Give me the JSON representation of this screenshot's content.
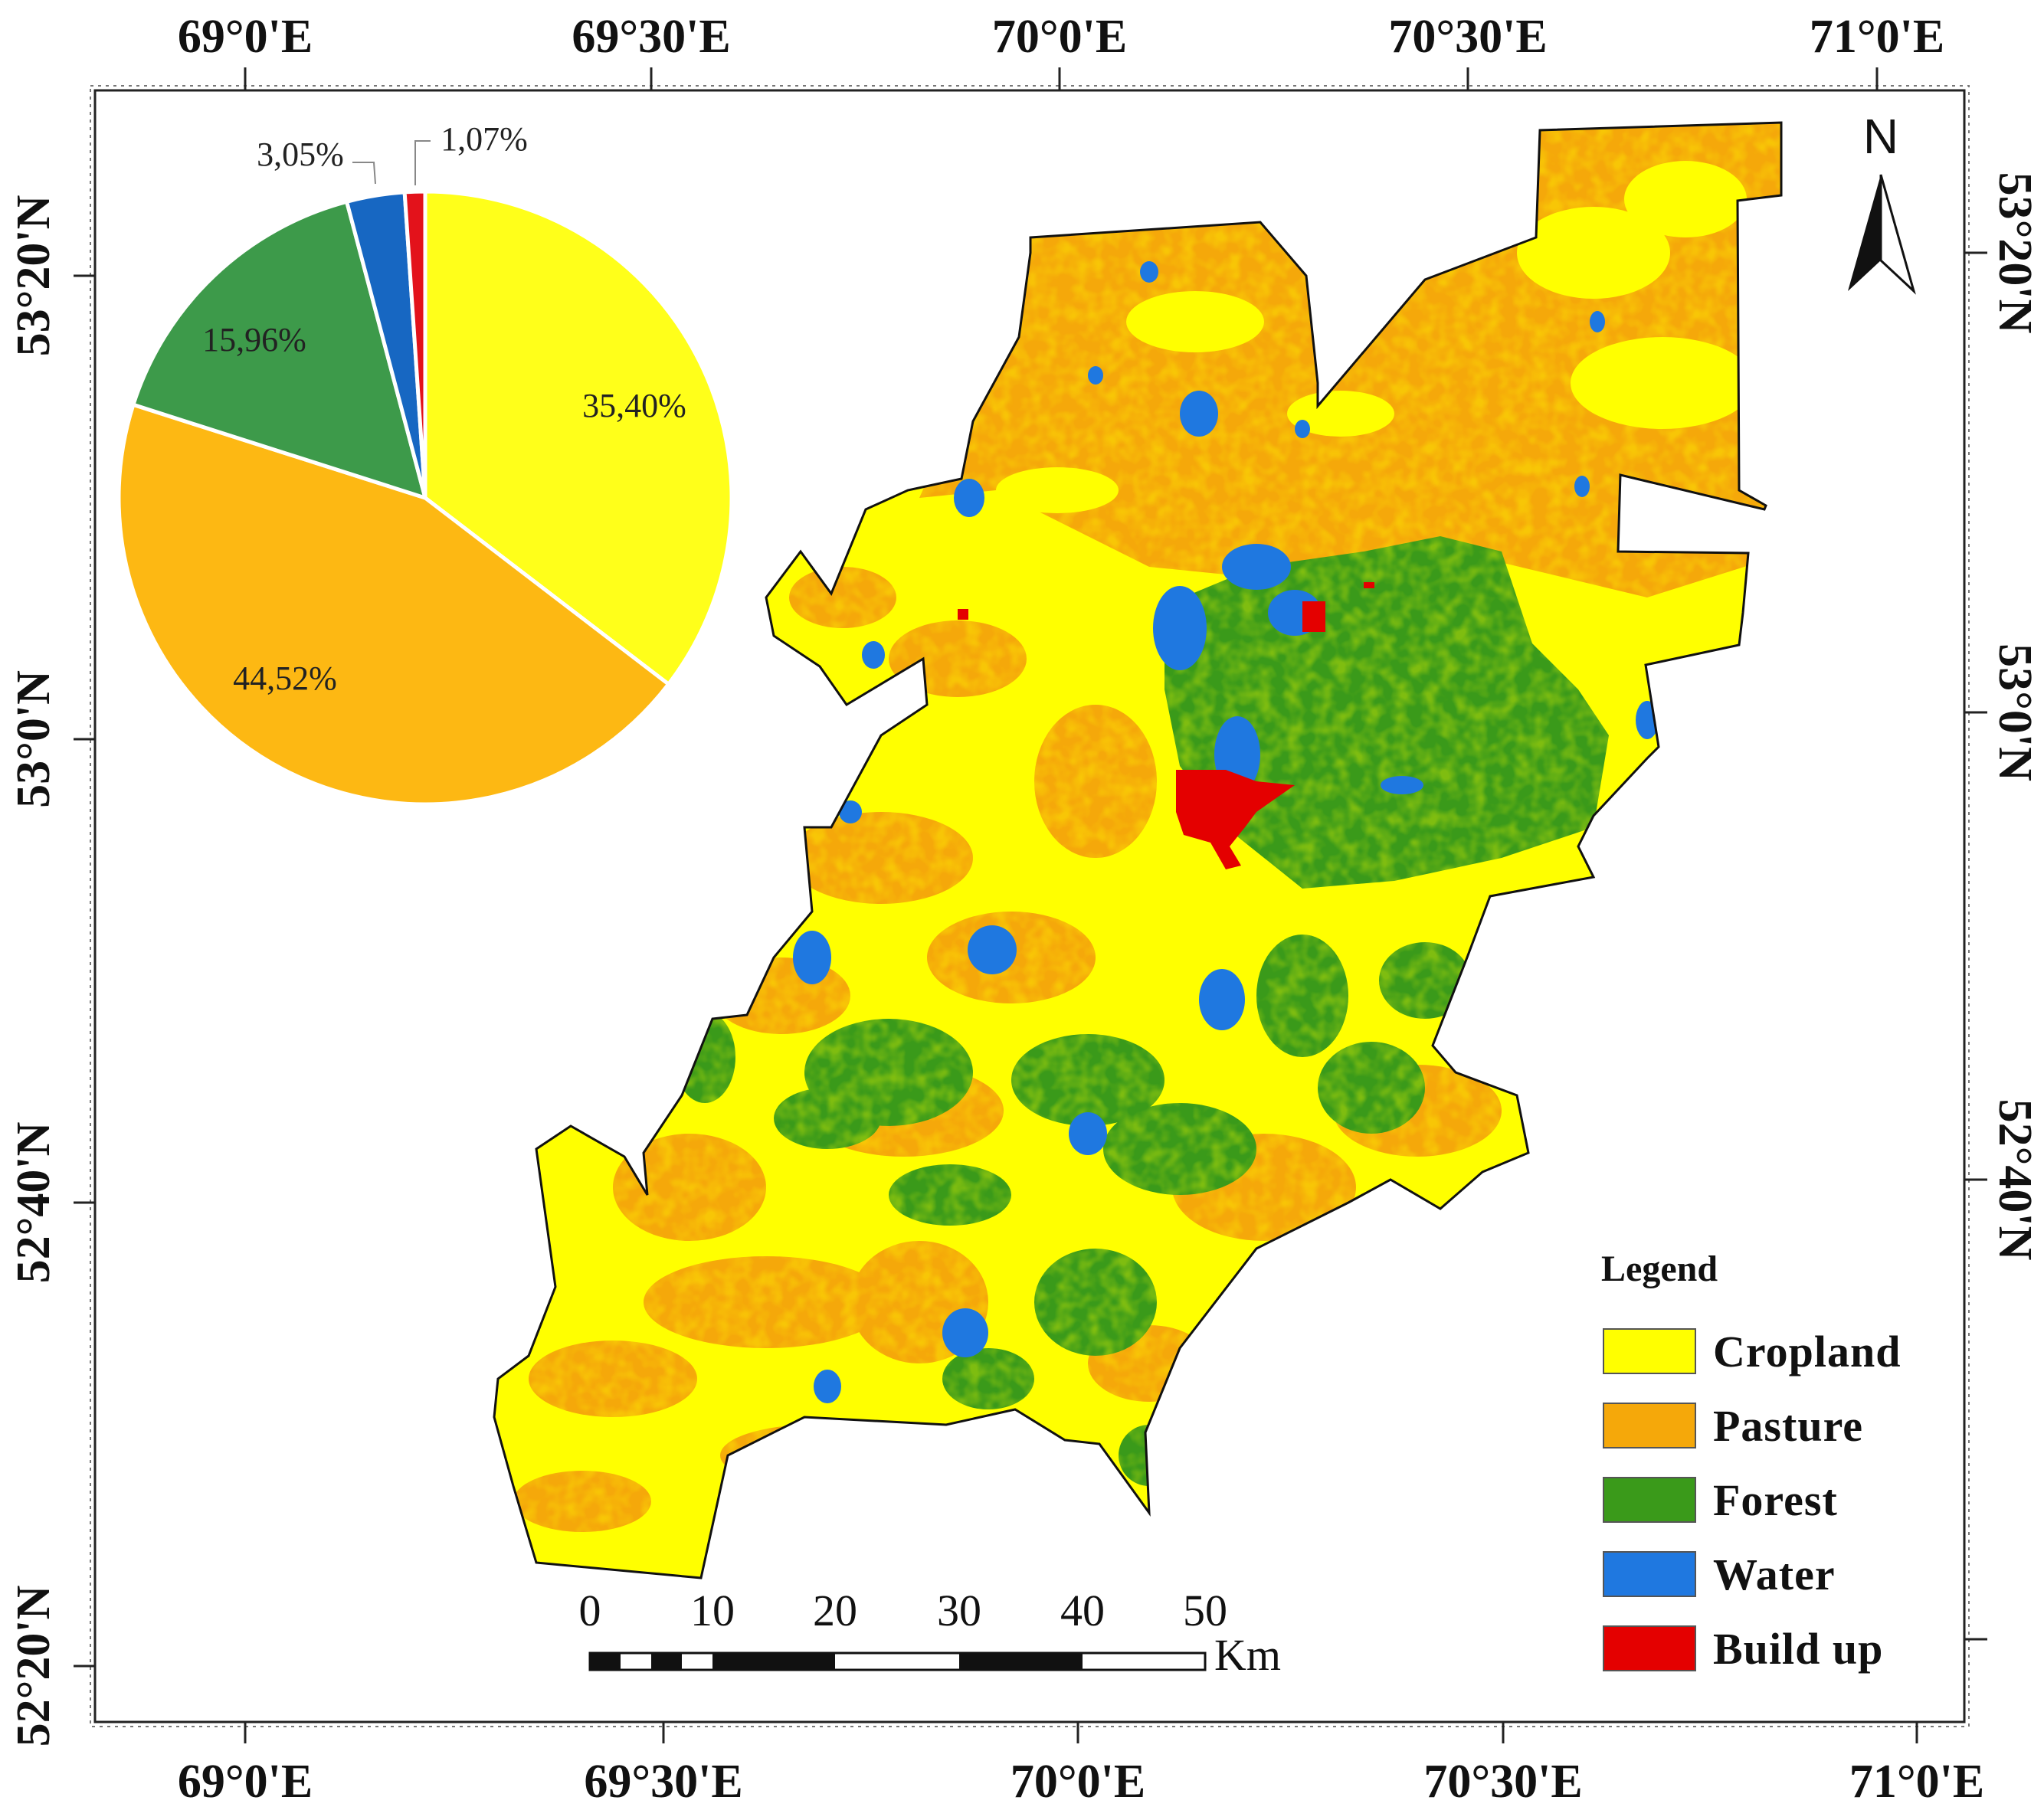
{
  "colors": {
    "cropland": "#ffff00",
    "pasture": "#f5a80a",
    "forest": "#3a9a1a",
    "water": "#1f78e0",
    "buildup": "#e40000",
    "pie_cropland": "#ffff1a",
    "pie_pasture": "#fdb813",
    "pie_forest": "#3d9a4a",
    "pie_water": "#1767c2",
    "pie_buildup": "#e3121b"
  },
  "graticule": {
    "top_labels": [
      "69°0'E",
      "69°30'E",
      "70°0'E",
      "70°30'E",
      "71°0'E"
    ],
    "bottom_labels": [
      "69°0'E",
      "69°30'E",
      "70°0'E",
      "70°30'E",
      "71°0'E"
    ],
    "left_labels": [
      "53°20'N",
      "53°0'N",
      "52°40'N",
      "52°20'N"
    ],
    "right_labels": [
      "53°20'N",
      "53°0'N",
      "52°40'N"
    ]
  },
  "north_arrow": {
    "label": "N",
    "icon": "north-arrow-icon"
  },
  "pie": {
    "slices": [
      {
        "class": "Cropland",
        "value": 35.4,
        "label": "35,40%"
      },
      {
        "class": "Pasture",
        "value": 44.52,
        "label": "44,52%"
      },
      {
        "class": "Forest",
        "value": 15.96,
        "label": "15,96%"
      },
      {
        "class": "Water",
        "value": 3.05,
        "label": "3,05%"
      },
      {
        "class": "Build up",
        "value": 1.07,
        "label": "1,07%"
      }
    ]
  },
  "legend": {
    "title": "Legend",
    "items": [
      {
        "label": "Cropland",
        "color": "#ffff00"
      },
      {
        "label": "Pasture",
        "color": "#f5a80a"
      },
      {
        "label": "Forest",
        "color": "#3a9a1a"
      },
      {
        "label": "Water",
        "color": "#1f78e0"
      },
      {
        "label": "Build up",
        "color": "#e40000"
      }
    ]
  },
  "scale_bar": {
    "labels": [
      "0",
      "10",
      "20",
      "30",
      "40",
      "50"
    ],
    "unit": "Km"
  }
}
